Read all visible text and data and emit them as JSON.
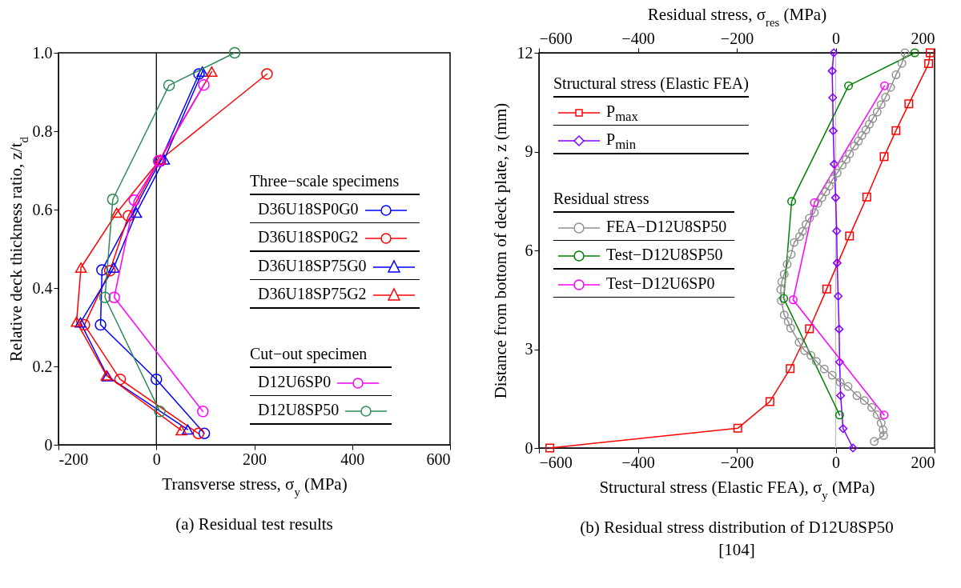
{
  "chart_data": [
    {
      "type": "line",
      "title": "(a) Residual test results",
      "xlabel": "Transverse stress, σ$_{y}$ (MPa)",
      "ylabel": "Relative deck thickness ratio, z/t$_{d}$",
      "xlim": [
        -200,
        600
      ],
      "xticks": [
        {
          "value": -200,
          "label": "-200"
        },
        0,
        200,
        400,
        600
      ],
      "ylim": [
        0,
        1
      ],
      "yticks": [
        0,
        0.2,
        0.4,
        0.6,
        0.8,
        {
          "value": 1,
          "label": "1.0"
        }
      ],
      "legend": "right",
      "legend_title": [
        "Three−scale specimens",
        null,
        null,
        null,
        "Cut−out specimen",
        null
      ],
      "ref_lines": [
        {
          "axis": "x",
          "value": 0,
          "color": "#000000"
        }
      ],
      "series": [
        {
          "name": "D36U18SP0G0",
          "color": "#0000ff",
          "marker": "circle",
          "x": [
            87,
            8,
            -111,
            -114,
            0,
            98
          ],
          "values": [
            0.946,
            0.724,
            0.446,
            0.306,
            0.167,
            0.029
          ]
        },
        {
          "name": "D36U18SP0G2",
          "color": "#ff0000",
          "marker": "circle",
          "x": [
            226,
            5,
            -57,
            -95,
            -147,
            -74,
            86
          ],
          "values": [
            0.946,
            0.724,
            0.584,
            0.444,
            0.306,
            0.167,
            0.029
          ]
        },
        {
          "name": "D36U18SP75G0",
          "color": "#0000ff",
          "marker": "triangle",
          "x": [
            94,
            16,
            -41,
            -87,
            -155,
            -100,
            64
          ],
          "values": [
            0.952,
            0.728,
            0.592,
            0.452,
            0.312,
            0.175,
            0.039
          ]
        },
        {
          "name": "D36U18SP75G2",
          "color": "#ff0000",
          "marker": "triangle",
          "x": [
            113,
            8,
            -81,
            -154,
            -163,
            -102,
            51
          ],
          "values": [
            0.952,
            0.728,
            0.592,
            0.452,
            0.314,
            0.177,
            0.037
          ]
        },
        {
          "name": "D12U6SP0",
          "color": "#ff00ff",
          "marker": "circle",
          "x": [
            97,
            5,
            -45,
            -86,
            95
          ],
          "values": [
            0.918,
            0.724,
            0.624,
            0.376,
            0.085
          ]
        },
        {
          "name": "D12U8SP50",
          "color": "#2e8b57",
          "marker": "circle",
          "x": [
            160,
            26,
            -89,
            -105,
            7
          ],
          "values": [
            1.0,
            0.917,
            0.626,
            0.376,
            0.085
          ]
        }
      ]
    },
    {
      "type": "line",
      "title": "(b) Residual stress distribution of D12U8SP50 [104]",
      "xlabel": "Structural stress (Elastic FEA), σ$_{y}$ (MPa)",
      "x2label": "Residual stress, σ$_{res}$ (MPa)",
      "ylabel": "Distance from bottom of deck plate, z (mm)",
      "xlim": [
        -600,
        200
      ],
      "xticks": [
        {
          "value": -600,
          "label": "−600"
        },
        {
          "value": -400,
          "label": "−400"
        },
        {
          "value": -200,
          "label": "−200"
        },
        0,
        200
      ],
      "x2lim": [
        -600,
        200
      ],
      "x2ticks": [
        {
          "value": -600,
          "label": "−600"
        },
        {
          "value": -400,
          "label": "−400"
        },
        {
          "value": -200,
          "label": "−200"
        },
        0,
        200
      ],
      "ylim": [
        0,
        12
      ],
      "yticks": [
        0,
        3,
        6,
        9,
        12
      ],
      "legend": "top left",
      "legend_title": [
        "Structural stress (Elastic FEA)",
        null,
        "Residual stress",
        null,
        null
      ],
      "ref_lines": [
        {
          "axis": "x",
          "value": 0,
          "color": "#c0c0c0"
        }
      ],
      "series": [
        {
          "name": "P$_{max}$",
          "color": "#ff0000",
          "marker": "square",
          "x": [
            191,
            188,
            148,
            122,
            98,
            63,
            28,
            -18,
            -53,
            -92,
            -133,
            -198,
            -578
          ],
          "values": [
            12,
            11.67,
            10.45,
            9.64,
            8.85,
            7.62,
            6.44,
            4.83,
            3.62,
            2.41,
            1.41,
            0.6,
            0
          ]
        },
        {
          "name": "P$_{min}$",
          "color": "#8000ff",
          "marker": "diamond",
          "x": [
            -4,
            -7,
            -6,
            -5,
            -3,
            0,
            2,
            3,
            5,
            7,
            8,
            10,
            15,
            35
          ],
          "values": [
            12,
            11.45,
            10.64,
            9.63,
            8.62,
            7.6,
            6.59,
            5.62,
            4.61,
            3.61,
            2.61,
            1.59,
            0.59,
            0
          ]
        },
        {
          "name": "FEA−D12U8SP50",
          "color": "#909090",
          "marker": "circle",
          "x": [
            140,
            134,
            122,
            111,
            101,
            92,
            84,
            75,
            68,
            61,
            53,
            46,
            38,
            28,
            21,
            13,
            3,
            -6,
            -13,
            -20,
            -28,
            -36,
            -43,
            -53,
            -60,
            -67,
            -73,
            -84,
            -90,
            -98,
            -104,
            -109,
            -111,
            -110,
            -104,
            -96,
            -91,
            -74,
            -63,
            -50,
            -39,
            -23,
            -7,
            9,
            25,
            43,
            58,
            73,
            84,
            92,
            96,
            97,
            78
          ],
          "values": [
            12,
            11.68,
            11.33,
            10.95,
            10.65,
            10.43,
            10.2,
            10,
            9.83,
            9.66,
            9.49,
            9.32,
            9.17,
            8.93,
            8.76,
            8.59,
            8.35,
            8.16,
            7.95,
            7.78,
            7.6,
            7.43,
            7.15,
            6.98,
            6.79,
            6.58,
            6.42,
            6.24,
            5.88,
            5.58,
            5.28,
            5.05,
            4.81,
            4.47,
            4.04,
            3.84,
            3.64,
            3.21,
            2.96,
            2.81,
            2.63,
            2.4,
            2.21,
            2,
            1.87,
            1.59,
            1.44,
            1.23,
            1.01,
            0.76,
            0.55,
            0.38,
            0.2
          ]
        },
        {
          "name": "Test−D12U8SP50",
          "color": "#008000",
          "marker": "circle",
          "x": [
            160,
            26,
            -89,
            -105,
            8
          ],
          "values": [
            12,
            11,
            7.49,
            4.54,
            1
          ]
        },
        {
          "name": "Test−D12U6SP0",
          "color": "#ff00ff",
          "marker": "circle",
          "x": [
            99,
            -43,
            -86,
            98
          ],
          "values": [
            11,
            7.45,
            4.5,
            1
          ]
        }
      ]
    }
  ]
}
